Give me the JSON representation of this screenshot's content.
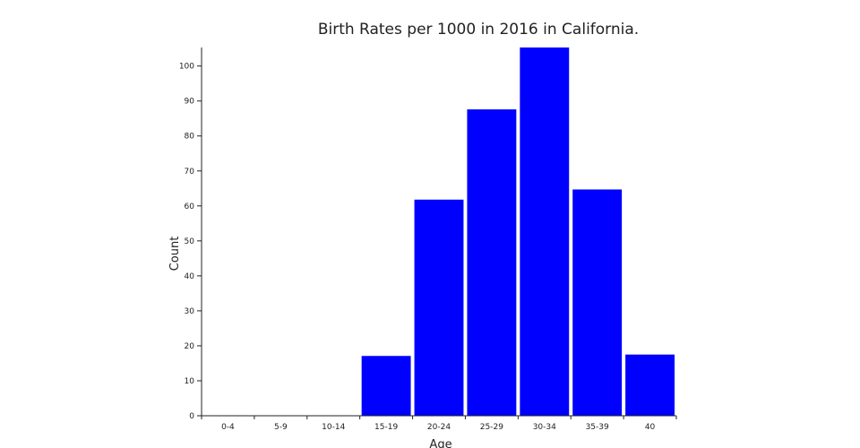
{
  "chart_data": {
    "type": "bar",
    "title": "Birth Rates per 1000 in 2016 in California.",
    "xlabel": "Age",
    "ylabel": "Count",
    "categories": [
      "0-4",
      "5-9",
      "10-14",
      "15-19",
      "20-24",
      "25-29",
      "30-34",
      "35-39",
      "40"
    ],
    "values": [
      0,
      0,
      0,
      17.1,
      61.8,
      87.6,
      105.3,
      64.7,
      17.5
    ],
    "ylim": [
      0,
      105.3
    ],
    "yticks": [
      0,
      10,
      20,
      30,
      40,
      50,
      60,
      70,
      80,
      90,
      100
    ],
    "bar_color": "#0000ff",
    "grid": false
  }
}
